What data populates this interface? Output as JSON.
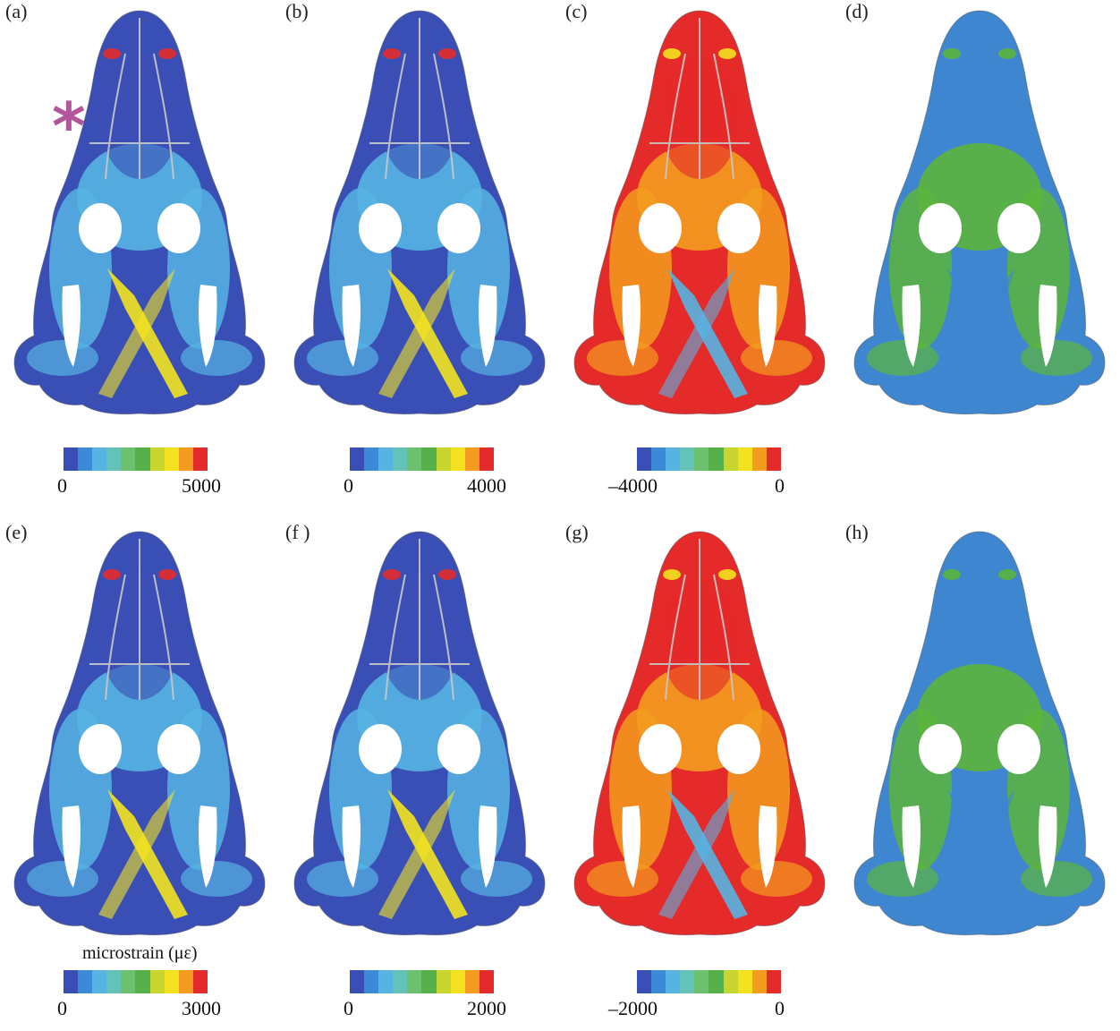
{
  "panels": [
    {
      "label": "(a)",
      "scheme": "strain"
    },
    {
      "label": "(b)",
      "scheme": "strain"
    },
    {
      "label": "(c)",
      "scheme": "compress"
    },
    {
      "label": "(d)",
      "scheme": "mode"
    },
    {
      "label": "(e)",
      "scheme": "strain"
    },
    {
      "label": "(f )",
      "scheme": "strain"
    },
    {
      "label": "(g)",
      "scheme": "compress"
    },
    {
      "label": "(h)",
      "scheme": "mode"
    }
  ],
  "colorbars": [
    {
      "min": "0",
      "max": "5000"
    },
    {
      "min": "0",
      "max": "4000"
    },
    {
      "min": "–4000",
      "max": "0"
    },
    {
      "min": "0",
      "max": "3000",
      "title": "microstrain (με)"
    },
    {
      "min": "0",
      "max": "2000"
    },
    {
      "min": "–2000",
      "max": "0"
    }
  ],
  "colors": {
    "scale": [
      "#3a4fb5",
      "#3a8ad6",
      "#56b4e3",
      "#63c3b8",
      "#6cc06f",
      "#56b04a",
      "#c7d52e",
      "#f3e21f",
      "#f39c1f",
      "#e52a2a"
    ],
    "mode_blue": "#3e86d0",
    "mode_green": "#5cb53c",
    "suture": "#c8c8c8",
    "asterisk": "#b2559b"
  }
}
